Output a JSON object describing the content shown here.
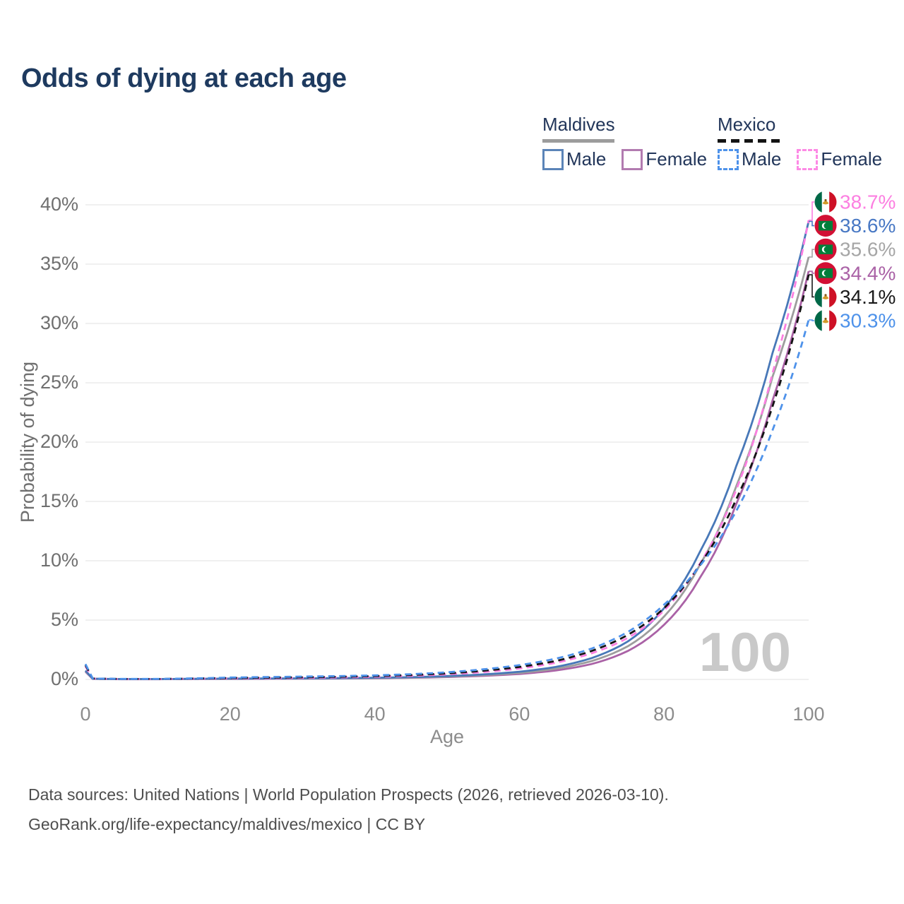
{
  "header": {
    "title": "Odds of dying at each age"
  },
  "legend": {
    "maldives": {
      "name": "Maldives",
      "male": "Male",
      "female": "Female"
    },
    "mexico": {
      "name": "Mexico",
      "male": "Male",
      "female": "Female"
    }
  },
  "colors": {
    "maldives_male": "#4878b8",
    "maldives_female": "#aa62a6",
    "maldives_total": "#9d9d9d",
    "mexico_male": "#4e92ea",
    "mexico_female": "#fc7fe1",
    "mexico_total": "#141414",
    "title_navy": "#1e3a5f",
    "grid": "#e7e7e7",
    "watermark": "#c9c9c9"
  },
  "chart_data": {
    "type": "line",
    "title": "Odds of dying at each age",
    "xlabel": "Age",
    "ylabel": "Probability of dying",
    "xlim": [
      0,
      100
    ],
    "ylim": [
      0,
      40
    ],
    "grid": "horizontal",
    "legend_position": "top-right",
    "watermark": "100",
    "x_ticks": [
      {
        "value": 0,
        "label": "0"
      },
      {
        "value": 20,
        "label": "20"
      },
      {
        "value": 40,
        "label": "40"
      },
      {
        "value": 60,
        "label": "60"
      },
      {
        "value": 80,
        "label": "80"
      },
      {
        "value": 100,
        "label": "100"
      }
    ],
    "y_ticks": [
      {
        "value": 0,
        "label": "0%"
      },
      {
        "value": 5,
        "label": "5%"
      },
      {
        "value": 10,
        "label": "10%"
      },
      {
        "value": 15,
        "label": "15%"
      },
      {
        "value": 20,
        "label": "20%"
      },
      {
        "value": 25,
        "label": "25%"
      },
      {
        "value": 30,
        "label": "30%"
      },
      {
        "value": 35,
        "label": "35%"
      },
      {
        "value": 40,
        "label": "40%"
      }
    ],
    "series": [
      {
        "id": "maldives_female",
        "country": "Maldives",
        "sex": "Female",
        "style": "solid",
        "color": "#aa62a6",
        "points": [
          [
            0,
            0.65
          ],
          [
            1,
            0.05
          ],
          [
            5,
            0.02
          ],
          [
            10,
            0.02
          ],
          [
            15,
            0.03
          ],
          [
            20,
            0.04
          ],
          [
            25,
            0.05
          ],
          [
            30,
            0.06
          ],
          [
            35,
            0.08
          ],
          [
            40,
            0.1
          ],
          [
            45,
            0.14
          ],
          [
            50,
            0.2
          ],
          [
            55,
            0.3
          ],
          [
            60,
            0.46
          ],
          [
            65,
            0.75
          ],
          [
            70,
            1.3
          ],
          [
            75,
            2.4
          ],
          [
            80,
            4.6
          ],
          [
            85,
            8.6
          ],
          [
            90,
            14.8
          ],
          [
            95,
            23.5
          ],
          [
            100,
            34.4
          ]
        ]
      },
      {
        "id": "maldives_total",
        "country": "Maldives",
        "sex": "Both",
        "style": "solid",
        "color": "#9d9d9d",
        "points": [
          [
            0,
            0.7
          ],
          [
            1,
            0.055
          ],
          [
            5,
            0.025
          ],
          [
            10,
            0.025
          ],
          [
            15,
            0.04
          ],
          [
            20,
            0.055
          ],
          [
            25,
            0.065
          ],
          [
            30,
            0.075
          ],
          [
            35,
            0.095
          ],
          [
            40,
            0.12
          ],
          [
            45,
            0.165
          ],
          [
            50,
            0.24
          ],
          [
            55,
            0.36
          ],
          [
            60,
            0.55
          ],
          [
            65,
            0.9
          ],
          [
            70,
            1.55
          ],
          [
            75,
            2.8
          ],
          [
            80,
            5.3
          ],
          [
            85,
            9.7
          ],
          [
            90,
            16.3
          ],
          [
            95,
            25.5
          ],
          [
            100,
            35.6
          ]
        ]
      },
      {
        "id": "maldives_male",
        "country": "Maldives",
        "sex": "Male",
        "style": "solid",
        "color": "#4878b8",
        "points": [
          [
            0,
            0.75
          ],
          [
            1,
            0.06
          ],
          [
            5,
            0.03
          ],
          [
            10,
            0.03
          ],
          [
            15,
            0.05
          ],
          [
            20,
            0.07
          ],
          [
            25,
            0.08
          ],
          [
            30,
            0.09
          ],
          [
            35,
            0.11
          ],
          [
            40,
            0.14
          ],
          [
            45,
            0.19
          ],
          [
            50,
            0.28
          ],
          [
            55,
            0.42
          ],
          [
            60,
            0.65
          ],
          [
            65,
            1.05
          ],
          [
            70,
            1.8
          ],
          [
            75,
            3.2
          ],
          [
            80,
            6.0
          ],
          [
            85,
            10.8
          ],
          [
            90,
            18.0
          ],
          [
            95,
            27.5
          ],
          [
            100,
            38.6
          ]
        ]
      },
      {
        "id": "mexico_female",
        "country": "Mexico",
        "sex": "Female",
        "style": "dashed",
        "color": "#fc7fe1",
        "points": [
          [
            0,
            1.1
          ],
          [
            1,
            0.07
          ],
          [
            5,
            0.03
          ],
          [
            10,
            0.03
          ],
          [
            15,
            0.06
          ],
          [
            20,
            0.09
          ],
          [
            25,
            0.11
          ],
          [
            30,
            0.13
          ],
          [
            35,
            0.17
          ],
          [
            40,
            0.22
          ],
          [
            45,
            0.3
          ],
          [
            50,
            0.43
          ],
          [
            55,
            0.62
          ],
          [
            60,
            0.92
          ],
          [
            65,
            1.4
          ],
          [
            70,
            2.2
          ],
          [
            75,
            3.5
          ],
          [
            80,
            5.8
          ],
          [
            85,
            9.8
          ],
          [
            90,
            16.0
          ],
          [
            95,
            25.8
          ],
          [
            100,
            38.7
          ]
        ]
      },
      {
        "id": "mexico_total",
        "country": "Mexico",
        "sex": "Both",
        "style": "dashed",
        "color": "#141414",
        "points": [
          [
            0,
            1.2
          ],
          [
            1,
            0.075
          ],
          [
            5,
            0.035
          ],
          [
            10,
            0.035
          ],
          [
            15,
            0.075
          ],
          [
            20,
            0.12
          ],
          [
            25,
            0.15
          ],
          [
            30,
            0.18
          ],
          [
            35,
            0.22
          ],
          [
            40,
            0.28
          ],
          [
            45,
            0.37
          ],
          [
            50,
            0.51
          ],
          [
            55,
            0.73
          ],
          [
            60,
            1.05
          ],
          [
            65,
            1.55
          ],
          [
            70,
            2.4
          ],
          [
            75,
            3.75
          ],
          [
            80,
            6.0
          ],
          [
            85,
            9.7
          ],
          [
            90,
            15.2
          ],
          [
            95,
            23.0
          ],
          [
            100,
            34.1
          ]
        ]
      },
      {
        "id": "mexico_male",
        "country": "Mexico",
        "sex": "Male",
        "style": "dashed",
        "color": "#4e92ea",
        "points": [
          [
            0,
            1.3
          ],
          [
            1,
            0.08
          ],
          [
            5,
            0.04
          ],
          [
            10,
            0.04
          ],
          [
            15,
            0.09
          ],
          [
            20,
            0.16
          ],
          [
            25,
            0.2
          ],
          [
            30,
            0.24
          ],
          [
            35,
            0.28
          ],
          [
            40,
            0.34
          ],
          [
            45,
            0.44
          ],
          [
            50,
            0.6
          ],
          [
            55,
            0.85
          ],
          [
            60,
            1.2
          ],
          [
            65,
            1.75
          ],
          [
            70,
            2.6
          ],
          [
            75,
            4.0
          ],
          [
            80,
            6.3
          ],
          [
            85,
            9.6
          ],
          [
            90,
            14.2
          ],
          [
            95,
            21.0
          ],
          [
            100,
            30.3
          ]
        ]
      }
    ],
    "end_labels": [
      {
        "series": "mexico_female",
        "flag": "mexico",
        "label": "38.7%",
        "color": "#fc7fe1"
      },
      {
        "series": "maldives_male",
        "flag": "maldives",
        "label": "38.6%",
        "color": "#4878c4"
      },
      {
        "series": "maldives_total",
        "flag": "maldives",
        "label": "35.6%",
        "color": "#a6a6a6"
      },
      {
        "series": "maldives_female",
        "flag": "maldives",
        "label": "34.4%",
        "color": "#aa62a6"
      },
      {
        "series": "mexico_total",
        "flag": "mexico",
        "label": "34.1%",
        "color": "#1a1a1a"
      },
      {
        "series": "mexico_male",
        "flag": "mexico",
        "label": "30.3%",
        "color": "#4e92ea"
      }
    ]
  },
  "footer": {
    "line1": "Data sources: United Nations | World Population Prospects (2026, retrieved 2026-03-10).",
    "line2": "GeoRank.org/life-expectancy/maldives/mexico | CC BY"
  }
}
